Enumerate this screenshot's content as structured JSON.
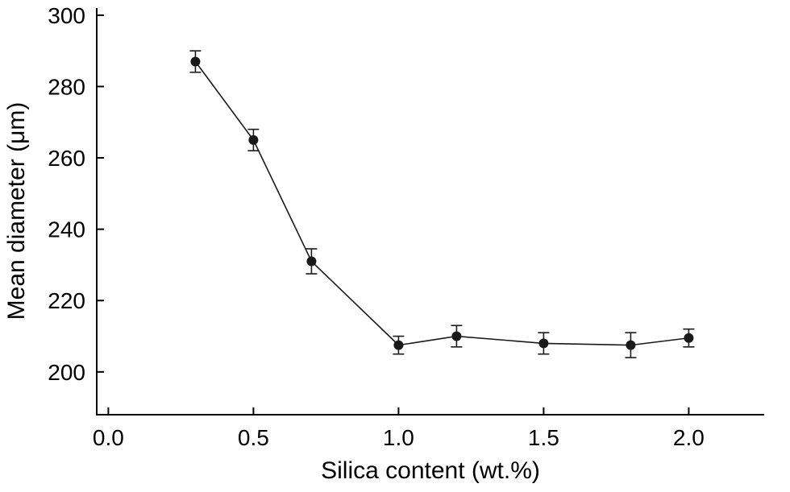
{
  "chart_data": {
    "type": "line",
    "title": "",
    "xlabel": "Silica content (wt.%)",
    "ylabel": "Mean diameter (μm)",
    "series": [
      {
        "name": "mean-diameter",
        "x": [
          0.3,
          0.5,
          0.7,
          1.0,
          1.2,
          1.5,
          1.8,
          2.0
        ],
        "y": [
          287,
          265,
          231,
          207.5,
          210,
          208,
          207.5,
          209.5
        ],
        "y_err": [
          3,
          3,
          3.5,
          2.5,
          3,
          3,
          3.5,
          2.5
        ],
        "marker": "filled-circle",
        "color": "#1a1a1a"
      }
    ],
    "xlim": [
      -0.04,
      2.26
    ],
    "ylim": [
      188,
      302
    ],
    "xticks": [
      0.0,
      0.5,
      1.0,
      1.5,
      2.0
    ],
    "yticks": [
      200,
      220,
      240,
      260,
      280,
      300
    ],
    "grid": false,
    "legend": "none",
    "background": "#ffffff",
    "axis_color": "#000000"
  }
}
